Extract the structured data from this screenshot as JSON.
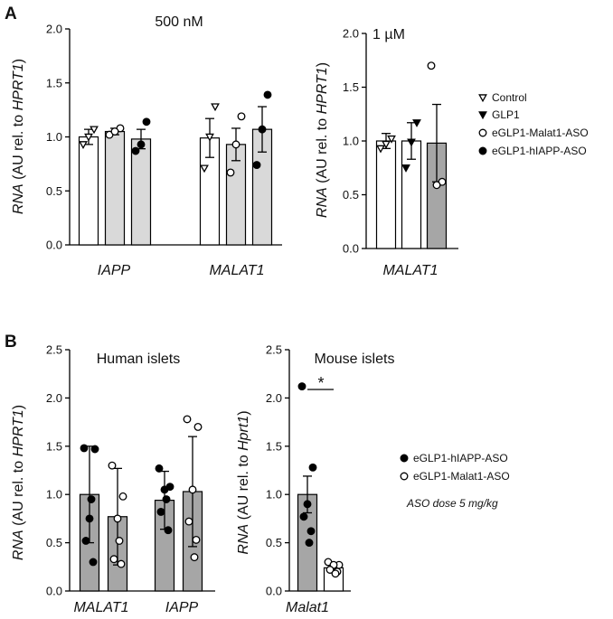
{
  "figure": {
    "panel_a_label": "A",
    "panel_b_label": "B"
  },
  "chart_data": [
    {
      "type": "bar",
      "panel": "A",
      "title": "500 nM",
      "ylabel_italic": "RNA",
      "ylabel_mid": " (AU rel. to ",
      "ylabel_gene": "HPRT1",
      "ylabel_end": ")",
      "ylim": [
        0,
        2.0
      ],
      "yticks": [
        "0.0",
        "0.5",
        "1.0",
        "1.5",
        "2.0"
      ],
      "categories": [
        "IAPP",
        "MALAT1"
      ],
      "series": [
        {
          "name": "Control",
          "fill": "#ffffff",
          "marker": "triangle-down-open",
          "values": [
            1.0,
            0.99
          ],
          "err": [
            0.07,
            0.18
          ],
          "points": [
            [
              0.93,
              1.07,
              1.0
            ],
            [
              0.71,
              1.28,
              1.0
            ]
          ]
        },
        {
          "name": "eGLP1-Malat1-ASO",
          "fill": "#d9d9d9",
          "marker": "circle-open",
          "values": [
            1.05,
            0.93
          ],
          "err": [
            0.03,
            0.15
          ],
          "points": [
            [
              1.02,
              1.08,
              1.05
            ],
            [
              0.67,
              1.19,
              0.93
            ]
          ]
        },
        {
          "name": "eGLP1-hIAPP-ASO",
          "fill": "#d9d9d9",
          "marker": "circle-filled",
          "values": [
            0.98,
            1.07
          ],
          "err": [
            0.09,
            0.21
          ],
          "points": [
            [
              0.87,
              1.14,
              0.93
            ],
            [
              0.74,
              1.39,
              1.07
            ]
          ]
        }
      ]
    },
    {
      "type": "bar",
      "panel": "A",
      "title": "1 µM",
      "ylabel_italic": "RNA",
      "ylabel_mid": " (AU rel. to ",
      "ylabel_gene": "HPRT1",
      "ylabel_end": ")",
      "ylim": [
        0,
        2.0
      ],
      "yticks": [
        "0.0",
        "0.5",
        "1.0",
        "1.5",
        "2.0"
      ],
      "categories": [
        "MALAT1"
      ],
      "series": [
        {
          "name": "Control",
          "fill": "#ffffff",
          "marker": "triangle-down-open",
          "values": [
            1.0
          ],
          "err": [
            0.07
          ],
          "points": [
            [
              0.93,
              1.02,
              0.97
            ]
          ]
        },
        {
          "name": "GLP1",
          "fill": "#ffffff",
          "marker": "triangle-down-filled",
          "values": [
            1.0
          ],
          "err": [
            0.17
          ],
          "points": [
            [
              0.75,
              1.17,
              0.99
            ]
          ]
        },
        {
          "name": "eGLP1-Malat1-ASO",
          "fill": "#a6a6a6",
          "marker": "circle-open",
          "values": [
            0.98
          ],
          "err": [
            0.36
          ],
          "points": [
            [
              1.7,
              0.62,
              0.59
            ]
          ]
        }
      ],
      "legend": [
        "Control",
        "GLP1",
        "eGLP1-Malat1-ASO",
        "eGLP1-hIAPP-ASO"
      ],
      "legend_markers": [
        "triangle-down-open",
        "triangle-down-filled",
        "circle-open",
        "circle-filled"
      ],
      "legend_position": "right"
    },
    {
      "type": "bar",
      "panel": "B",
      "title": "Human islets",
      "ylabel_italic": "RNA",
      "ylabel_mid": " (AU rel. to ",
      "ylabel_gene": "HPRT1",
      "ylabel_end": ")",
      "ylim": [
        0,
        2.5
      ],
      "yticks": [
        "0.0",
        "0.5",
        "1.0",
        "1.5",
        "2.0",
        "2.5"
      ],
      "categories": [
        "MALAT1",
        "IAPP"
      ],
      "series": [
        {
          "name": "eGLP1-hIAPP-ASO",
          "fill": "#a6a6a6",
          "marker": "circle-filled",
          "values": [
            1.0,
            0.94
          ],
          "sd": [
            0.5,
            0.3
          ],
          "points": [
            [
              1.48,
              1.47,
              0.75,
              0.52,
              0.3,
              0.95
            ],
            [
              1.27,
              1.08,
              1.05,
              0.82,
              0.63,
              0.95
            ]
          ]
        },
        {
          "name": "eGLP1-Malat1-ASO",
          "fill": "#a6a6a6",
          "marker": "circle-open",
          "values": [
            0.77,
            1.03
          ],
          "sd": [
            0.5,
            0.57
          ],
          "points": [
            [
              1.3,
              0.98,
              0.75,
              0.33,
              0.28,
              0.52
            ],
            [
              1.78,
              1.7,
              1.05,
              0.72,
              0.53,
              0.35
            ]
          ]
        }
      ]
    },
    {
      "type": "bar",
      "panel": "B",
      "title": "Mouse islets",
      "ylabel_italic": "RNA",
      "ylabel_mid": " (AU rel. to ",
      "ylabel_gene": "Hprt1",
      "ylabel_end": ")",
      "ylim": [
        0,
        2.5
      ],
      "yticks": [
        "0.0",
        "0.5",
        "1.0",
        "1.5",
        "2.0",
        "2.5"
      ],
      "categories": [
        "Malat1"
      ],
      "series": [
        {
          "name": "eGLP1-hIAPP-ASO",
          "fill": "#a6a6a6",
          "marker": "circle-filled",
          "values": [
            1.0
          ],
          "sem": [
            0.19
          ],
          "points": [
            [
              2.12,
              1.28,
              0.9,
              0.77,
              0.62,
              0.5
            ]
          ]
        },
        {
          "name": "eGLP1-Malat1-ASO",
          "fill": "#ffffff",
          "marker": "circle-open",
          "values": [
            0.24
          ],
          "sem": [
            0.04
          ],
          "points": [
            [
              0.3,
              0.27,
              0.27,
              0.22,
              0.2,
              0.18
            ]
          ]
        }
      ],
      "significance": "*",
      "legend": [
        "eGLP1-hIAPP-ASO",
        "eGLP1-Malat1-ASO"
      ],
      "legend_markers": [
        "circle-filled",
        "circle-open"
      ],
      "legend_note": "ASO dose 5 mg/kg",
      "legend_position": "right"
    }
  ]
}
